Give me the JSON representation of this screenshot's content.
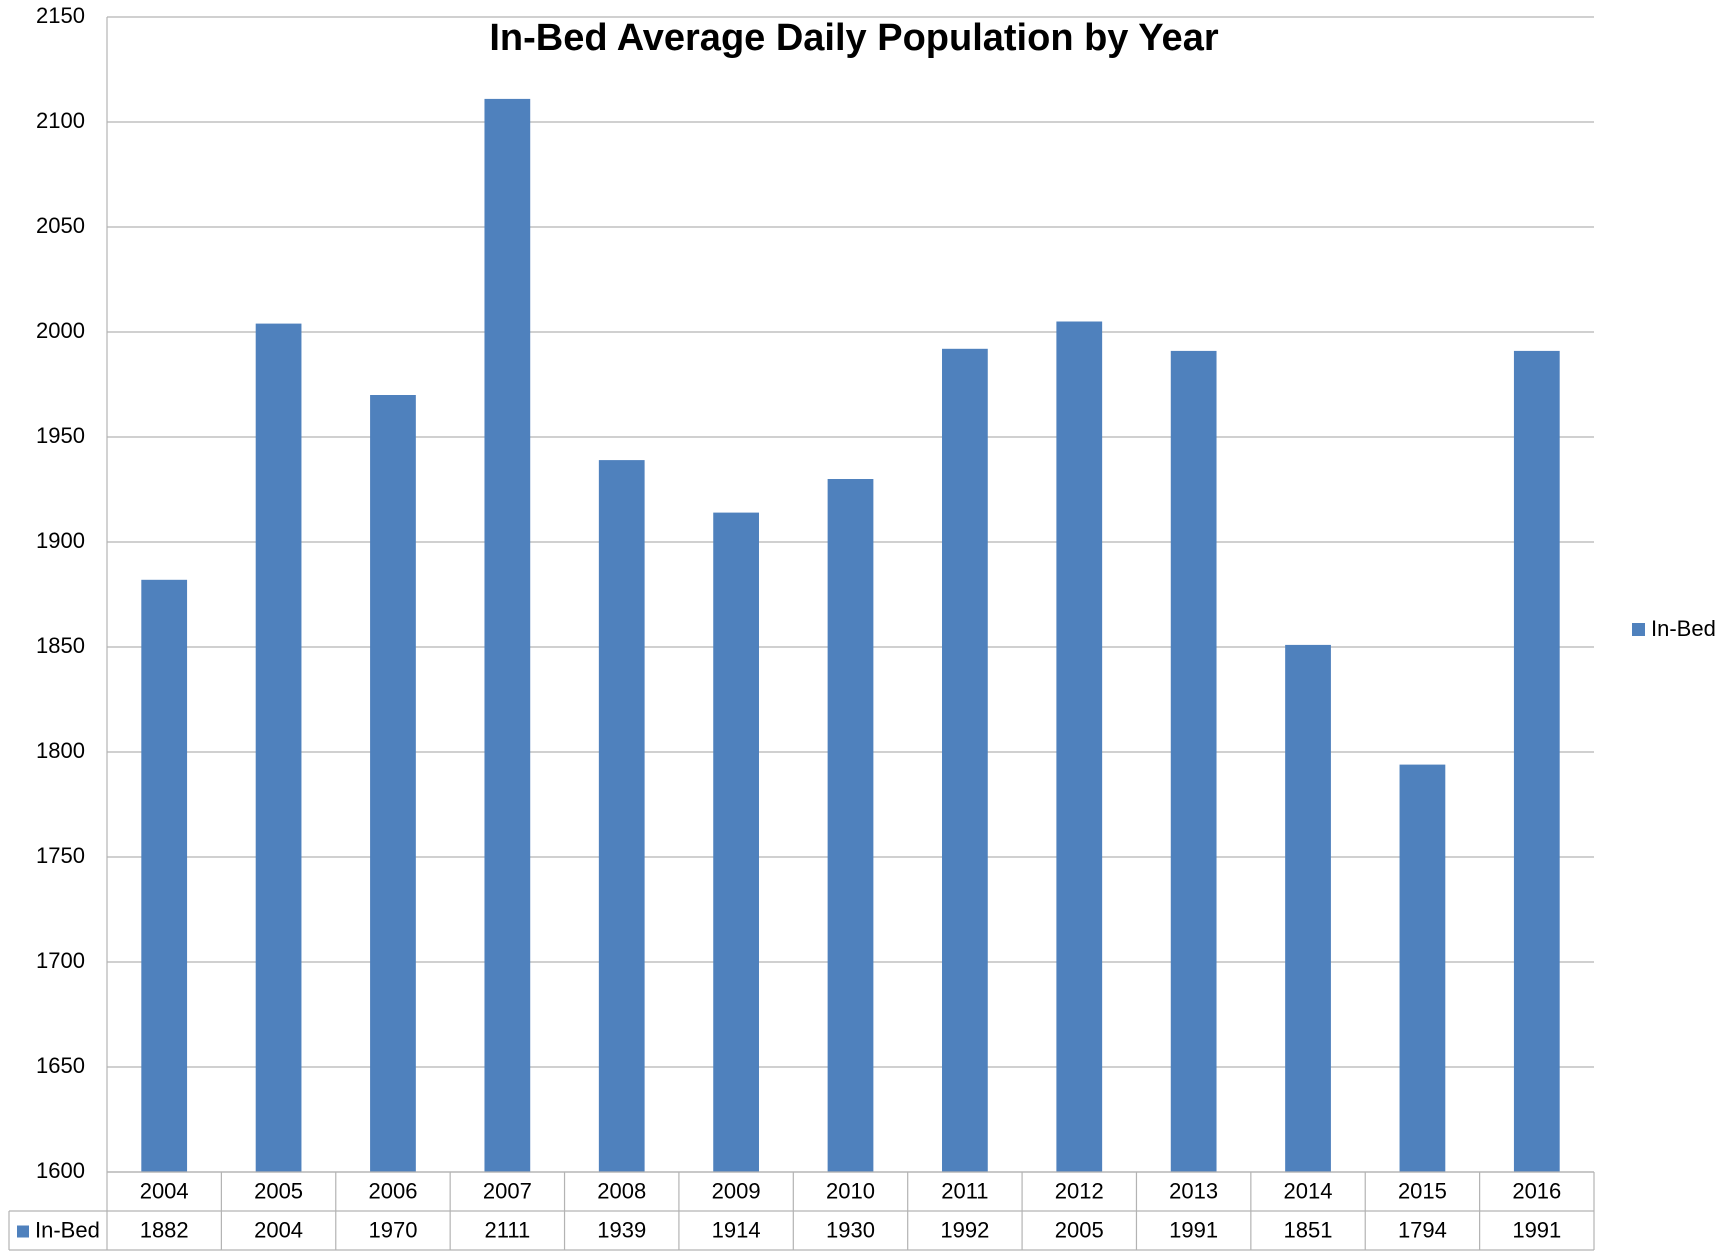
{
  "chart_data": {
    "type": "bar",
    "title": "In-Bed Average Daily Population by Year",
    "categories": [
      "2004",
      "2005",
      "2006",
      "2007",
      "2008",
      "2009",
      "2010",
      "2011",
      "2012",
      "2013",
      "2014",
      "2015",
      "2016"
    ],
    "series": [
      {
        "name": "In-Bed",
        "color": "#4f81bd",
        "values": [
          1882,
          2004,
          1970,
          2111,
          1939,
          1914,
          1930,
          1992,
          2005,
          1991,
          1851,
          1794,
          1991
        ]
      }
    ],
    "ylim": [
      1600,
      2150
    ],
    "yticks": [
      1600,
      1650,
      1700,
      1750,
      1800,
      1850,
      1900,
      1950,
      2000,
      2050,
      2100,
      2150
    ],
    "grid": true,
    "legend": "right",
    "data_table": true
  }
}
